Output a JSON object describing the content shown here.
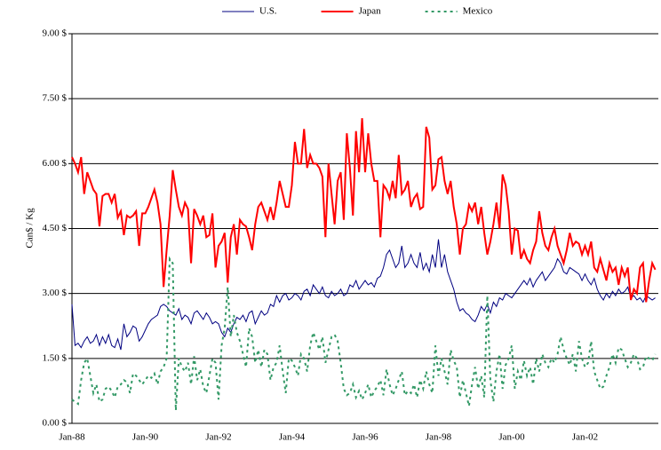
{
  "chart_data": {
    "type": "line",
    "y_label": "Can$ / Kg",
    "categories": [
      "Jan-88",
      null,
      null,
      null,
      null,
      null,
      null,
      null,
      null,
      null,
      null,
      null,
      null,
      null,
      null,
      null,
      null,
      null,
      null,
      null,
      null,
      null,
      null,
      null,
      "Jan-90",
      null,
      null,
      null,
      null,
      null,
      null,
      null,
      null,
      null,
      null,
      null,
      null,
      null,
      null,
      null,
      null,
      null,
      null,
      null,
      null,
      null,
      null,
      null,
      "Jan-92",
      null,
      null,
      null,
      null,
      null,
      null,
      null,
      null,
      null,
      null,
      null,
      null,
      null,
      null,
      null,
      null,
      null,
      null,
      null,
      null,
      null,
      null,
      null,
      "Jan-94",
      null,
      null,
      null,
      null,
      null,
      null,
      null,
      null,
      null,
      null,
      null,
      null,
      null,
      null,
      null,
      null,
      null,
      null,
      null,
      null,
      null,
      null,
      null,
      "Jan-96",
      null,
      null,
      null,
      null,
      null,
      null,
      null,
      null,
      null,
      null,
      null,
      null,
      null,
      null,
      null,
      null,
      null,
      null,
      null,
      null,
      null,
      null,
      null,
      "Jan-98",
      null,
      null,
      null,
      null,
      null,
      null,
      null,
      null,
      null,
      null,
      null,
      null,
      null,
      null,
      null,
      null,
      null,
      null,
      null,
      null,
      null,
      null,
      null,
      "Jan-00",
      null,
      null,
      null,
      null,
      null,
      null,
      null,
      null,
      null,
      null,
      null,
      null,
      null,
      null,
      null,
      null,
      null,
      null,
      null,
      null,
      null,
      null,
      null,
      "Jan-02",
      null,
      null,
      null,
      null,
      null,
      null,
      null,
      null,
      null,
      null,
      null,
      null,
      null,
      null,
      null,
      null,
      null,
      null,
      null,
      null,
      null,
      null,
      null
    ],
    "series": [
      {
        "name": "U.S.",
        "color": "#000080",
        "dashed": false,
        "width": 1,
        "values": [
          2.75,
          1.8,
          1.85,
          1.75,
          1.9,
          2.0,
          1.85,
          1.9,
          2.05,
          1.8,
          2.0,
          1.85,
          2.05,
          1.8,
          1.75,
          1.95,
          1.7,
          2.3,
          2.0,
          2.1,
          2.25,
          2.2,
          1.9,
          2.0,
          2.15,
          2.3,
          2.4,
          2.45,
          2.5,
          2.7,
          2.75,
          2.7,
          2.6,
          2.55,
          2.5,
          2.65,
          2.4,
          2.5,
          2.45,
          2.3,
          2.55,
          2.6,
          2.5,
          2.4,
          2.55,
          2.45,
          2.3,
          2.35,
          2.3,
          2.1,
          2.0,
          2.2,
          2.1,
          2.3,
          2.45,
          2.4,
          2.5,
          2.35,
          2.55,
          2.6,
          2.3,
          2.45,
          2.6,
          2.5,
          2.55,
          2.75,
          2.7,
          2.95,
          2.8,
          2.95,
          3.0,
          2.85,
          2.9,
          3.0,
          2.95,
          2.85,
          3.05,
          3.1,
          2.95,
          3.2,
          3.1,
          3.0,
          3.15,
          2.95,
          2.9,
          3.05,
          2.95,
          3.0,
          3.1,
          2.95,
          3.0,
          3.2,
          3.15,
          3.3,
          3.1,
          3.2,
          3.3,
          3.2,
          3.25,
          3.15,
          3.35,
          3.4,
          3.6,
          3.9,
          4.0,
          3.8,
          3.6,
          3.7,
          4.1,
          3.6,
          3.7,
          3.9,
          3.7,
          3.6,
          3.95,
          3.55,
          3.7,
          3.5,
          3.9,
          3.6,
          4.25,
          3.6,
          3.9,
          3.5,
          3.3,
          3.1,
          2.8,
          2.6,
          2.65,
          2.55,
          2.5,
          2.4,
          2.35,
          2.5,
          2.7,
          2.6,
          2.75,
          2.55,
          2.8,
          2.7,
          2.9,
          2.85,
          3.0,
          2.95,
          2.9,
          3.0,
          3.1,
          3.2,
          3.3,
          3.2,
          3.35,
          3.15,
          3.3,
          3.4,
          3.5,
          3.3,
          3.4,
          3.5,
          3.6,
          3.8,
          3.7,
          3.5,
          3.45,
          3.6,
          3.55,
          3.5,
          3.45,
          3.3,
          3.45,
          3.3,
          3.2,
          3.35,
          3.1,
          2.95,
          2.85,
          3.0,
          2.9,
          3.05,
          2.95,
          3.1,
          3.0,
          3.05,
          3.15,
          2.9,
          2.95,
          2.85,
          2.9,
          2.8,
          2.95,
          2.9,
          2.85,
          2.9
        ]
      },
      {
        "name": "Japan",
        "color": "#ff0000",
        "dashed": false,
        "width": 2,
        "values": [
          6.15,
          6.0,
          5.8,
          6.15,
          5.3,
          5.8,
          5.6,
          5.4,
          5.3,
          4.55,
          5.25,
          5.3,
          5.3,
          5.1,
          5.3,
          4.75,
          4.9,
          4.35,
          4.8,
          4.75,
          4.8,
          4.9,
          4.1,
          4.85,
          4.85,
          5.0,
          5.2,
          5.4,
          5.1,
          4.6,
          3.15,
          4.0,
          4.8,
          5.85,
          5.4,
          5.0,
          4.8,
          5.1,
          4.95,
          3.7,
          4.95,
          4.8,
          4.6,
          4.8,
          4.3,
          4.35,
          4.85,
          3.6,
          4.1,
          4.2,
          4.4,
          3.25,
          4.3,
          4.6,
          3.9,
          4.7,
          4.6,
          4.55,
          4.3,
          4.0,
          4.6,
          5.0,
          5.1,
          4.9,
          4.7,
          5.0,
          4.7,
          5.1,
          5.6,
          5.3,
          5.0,
          5.0,
          5.5,
          6.5,
          6.0,
          6.0,
          6.8,
          5.9,
          6.2,
          6.0,
          6.0,
          5.9,
          5.7,
          4.3,
          6.0,
          5.3,
          4.6,
          5.6,
          5.8,
          4.7,
          6.7,
          5.9,
          4.8,
          6.75,
          5.8,
          7.05,
          5.8,
          6.7,
          6.0,
          5.6,
          5.6,
          4.3,
          5.5,
          5.4,
          5.2,
          5.6,
          5.2,
          6.2,
          5.3,
          5.4,
          5.6,
          5.0,
          5.2,
          5.3,
          4.95,
          5.0,
          6.85,
          6.6,
          5.4,
          5.5,
          6.1,
          6.15,
          5.6,
          5.3,
          5.6,
          5.0,
          4.6,
          3.9,
          4.5,
          4.6,
          5.05,
          4.9,
          5.1,
          4.6,
          5.0,
          4.4,
          3.9,
          4.2,
          4.6,
          5.1,
          4.5,
          5.75,
          5.5,
          4.9,
          3.9,
          4.5,
          4.45,
          3.8,
          4.0,
          3.8,
          3.7,
          4.0,
          4.2,
          4.9,
          4.4,
          4.1,
          4.0,
          4.3,
          4.5,
          4.1,
          3.9,
          3.7,
          4.0,
          4.4,
          4.1,
          4.2,
          4.15,
          3.9,
          4.1,
          3.9,
          4.2,
          3.6,
          3.5,
          3.8,
          3.55,
          3.3,
          3.7,
          3.5,
          3.6,
          3.2,
          3.6,
          3.4,
          3.6,
          2.85,
          3.1,
          3.0,
          3.6,
          3.7,
          2.8,
          3.3,
          3.7,
          3.55
        ]
      },
      {
        "name": "Mexico",
        "color": "#339966",
        "dashed": true,
        "width": 2,
        "values": [
          0.55,
          0.5,
          0.45,
          1.0,
          1.4,
          1.5,
          1.1,
          0.7,
          0.9,
          0.5,
          0.55,
          0.8,
          0.85,
          0.75,
          0.6,
          0.85,
          0.9,
          1.0,
          0.95,
          0.7,
          1.15,
          1.1,
          1.0,
          0.9,
          1.0,
          1.1,
          1.05,
          1.15,
          0.9,
          1.2,
          1.3,
          1.5,
          3.8,
          3.7,
          0.3,
          1.5,
          1.3,
          1.2,
          1.4,
          0.9,
          1.55,
          1.0,
          1.25,
          0.85,
          0.7,
          1.1,
          1.5,
          1.4,
          0.55,
          1.8,
          2.2,
          3.15,
          2.0,
          2.5,
          2.1,
          1.9,
          1.6,
          1.3,
          2.2,
          2.0,
          1.4,
          1.7,
          1.3,
          1.7,
          1.6,
          1.0,
          1.3,
          1.4,
          1.8,
          1.2,
          0.7,
          1.5,
          1.45,
          1.3,
          1.1,
          1.6,
          1.5,
          1.2,
          1.8,
          2.1,
          1.9,
          1.7,
          2.0,
          1.4,
          1.7,
          2.0,
          2.05,
          1.9,
          1.4,
          0.8,
          0.65,
          0.7,
          0.9,
          0.6,
          0.75,
          0.55,
          0.7,
          0.9,
          0.6,
          0.75,
          0.85,
          1.0,
          0.65,
          1.25,
          0.9,
          0.65,
          0.8,
          1.0,
          1.2,
          0.65,
          0.75,
          0.7,
          0.9,
          0.6,
          1.0,
          0.8,
          1.2,
          0.9,
          0.7,
          1.8,
          1.1,
          1.5,
          1.2,
          0.9,
          1.7,
          1.45,
          1.3,
          0.6,
          1.0,
          0.7,
          0.4,
          0.9,
          1.3,
          0.8,
          1.1,
          0.6,
          2.95,
          1.0,
          0.5,
          1.2,
          1.6,
          0.8,
          1.35,
          1.5,
          1.8,
          0.8,
          1.2,
          1.0,
          1.45,
          1.1,
          1.3,
          0.9,
          1.5,
          1.2,
          1.6,
          1.4,
          1.3,
          1.5,
          1.4,
          1.6,
          2.0,
          1.7,
          1.5,
          1.35,
          1.6,
          1.2,
          1.9,
          1.5,
          1.3,
          1.4,
          1.9,
          1.2,
          1.0,
          0.8,
          0.85,
          1.1,
          1.3,
          1.6,
          1.4,
          1.75,
          1.7,
          1.5,
          1.3,
          1.4,
          1.6,
          1.5,
          1.25,
          1.3,
          1.55,
          1.5,
          1.45,
          1.6
        ]
      }
    ],
    "ylim": [
      0,
      9
    ],
    "yticks": [
      {
        "value": 0,
        "label": "0.00 $"
      },
      {
        "value": 1.5,
        "label": "1.50 $"
      },
      {
        "value": 3,
        "label": "3.00 $"
      },
      {
        "value": 4.5,
        "label": "4.50 $"
      },
      {
        "value": 6,
        "label": "6.00 $"
      },
      {
        "value": 7.5,
        "label": "7.50 $"
      },
      {
        "value": 9,
        "label": "9.00 $"
      }
    ],
    "grid": true,
    "legend": "top"
  }
}
